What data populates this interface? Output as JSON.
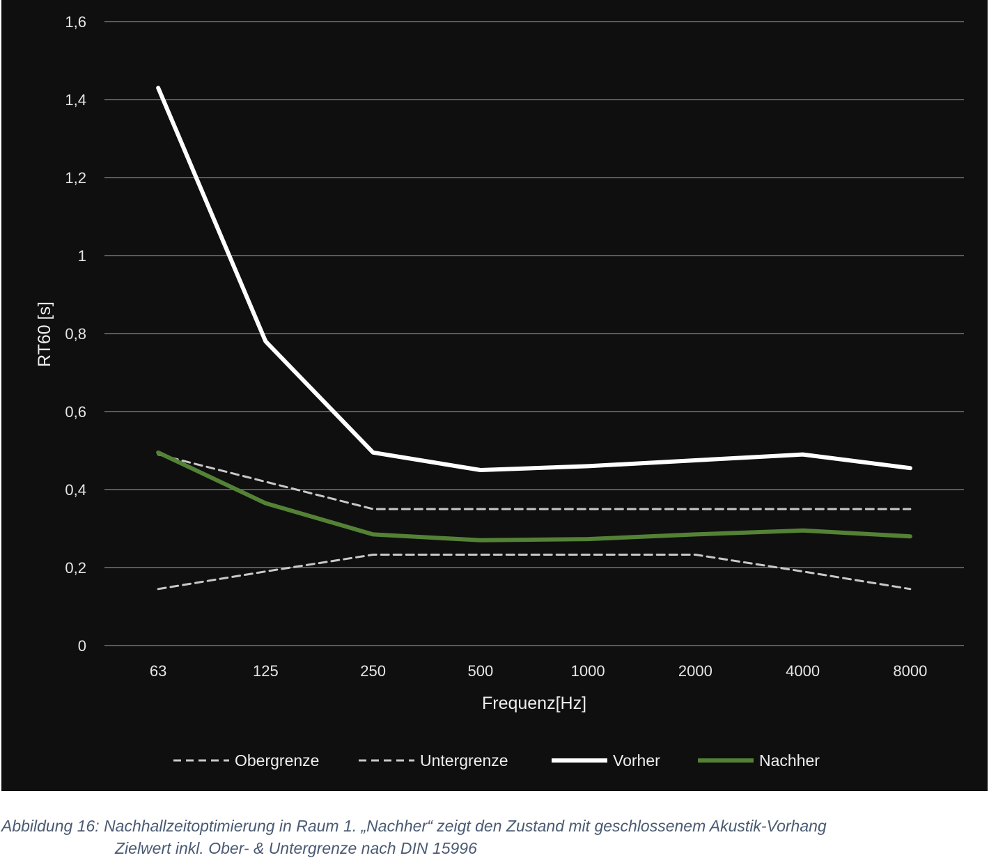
{
  "chart_data": {
    "type": "line",
    "title": "",
    "xlabel": "Frequenz[Hz]",
    "ylabel": "RT60 [s]",
    "categories": [
      "63",
      "125",
      "250",
      "500",
      "1000",
      "2000",
      "4000",
      "8000"
    ],
    "ylim": [
      0,
      1.6
    ],
    "yticks": [
      "0",
      "0,2",
      "0,4",
      "0,6",
      "0,8",
      "1",
      "1,2",
      "1,4",
      "1,6"
    ],
    "grid": "horizontal",
    "legend_position": "bottom",
    "series": [
      {
        "name": "Obergrenze",
        "values": [
          0.49,
          0.42,
          0.35,
          0.35,
          0.35,
          0.35,
          0.35,
          0.35
        ],
        "color": "#c8c8c8",
        "style": "dashed"
      },
      {
        "name": "Untergrenze",
        "values": [
          0.145,
          0.19,
          0.233,
          0.233,
          0.233,
          0.233,
          0.19,
          0.145
        ],
        "color": "#c8c8c8",
        "style": "dashed"
      },
      {
        "name": "Vorher",
        "values": [
          1.43,
          0.78,
          0.495,
          0.45,
          0.46,
          0.475,
          0.49,
          0.455
        ],
        "color": "#ffffff",
        "style": "solid"
      },
      {
        "name": "Nachher",
        "values": [
          0.495,
          0.365,
          0.285,
          0.27,
          0.273,
          0.285,
          0.295,
          0.28
        ],
        "color": "#548235",
        "style": "solid"
      }
    ]
  },
  "caption": {
    "line1": "Abbildung 16: Nachhallzeitoptimierung in Raum 1. „Nachher“ zeigt den Zustand mit geschlossenem Akustik-Vorhang",
    "line2": "Zielwert inkl. Ober- & Untergrenze nach DIN 15996"
  }
}
